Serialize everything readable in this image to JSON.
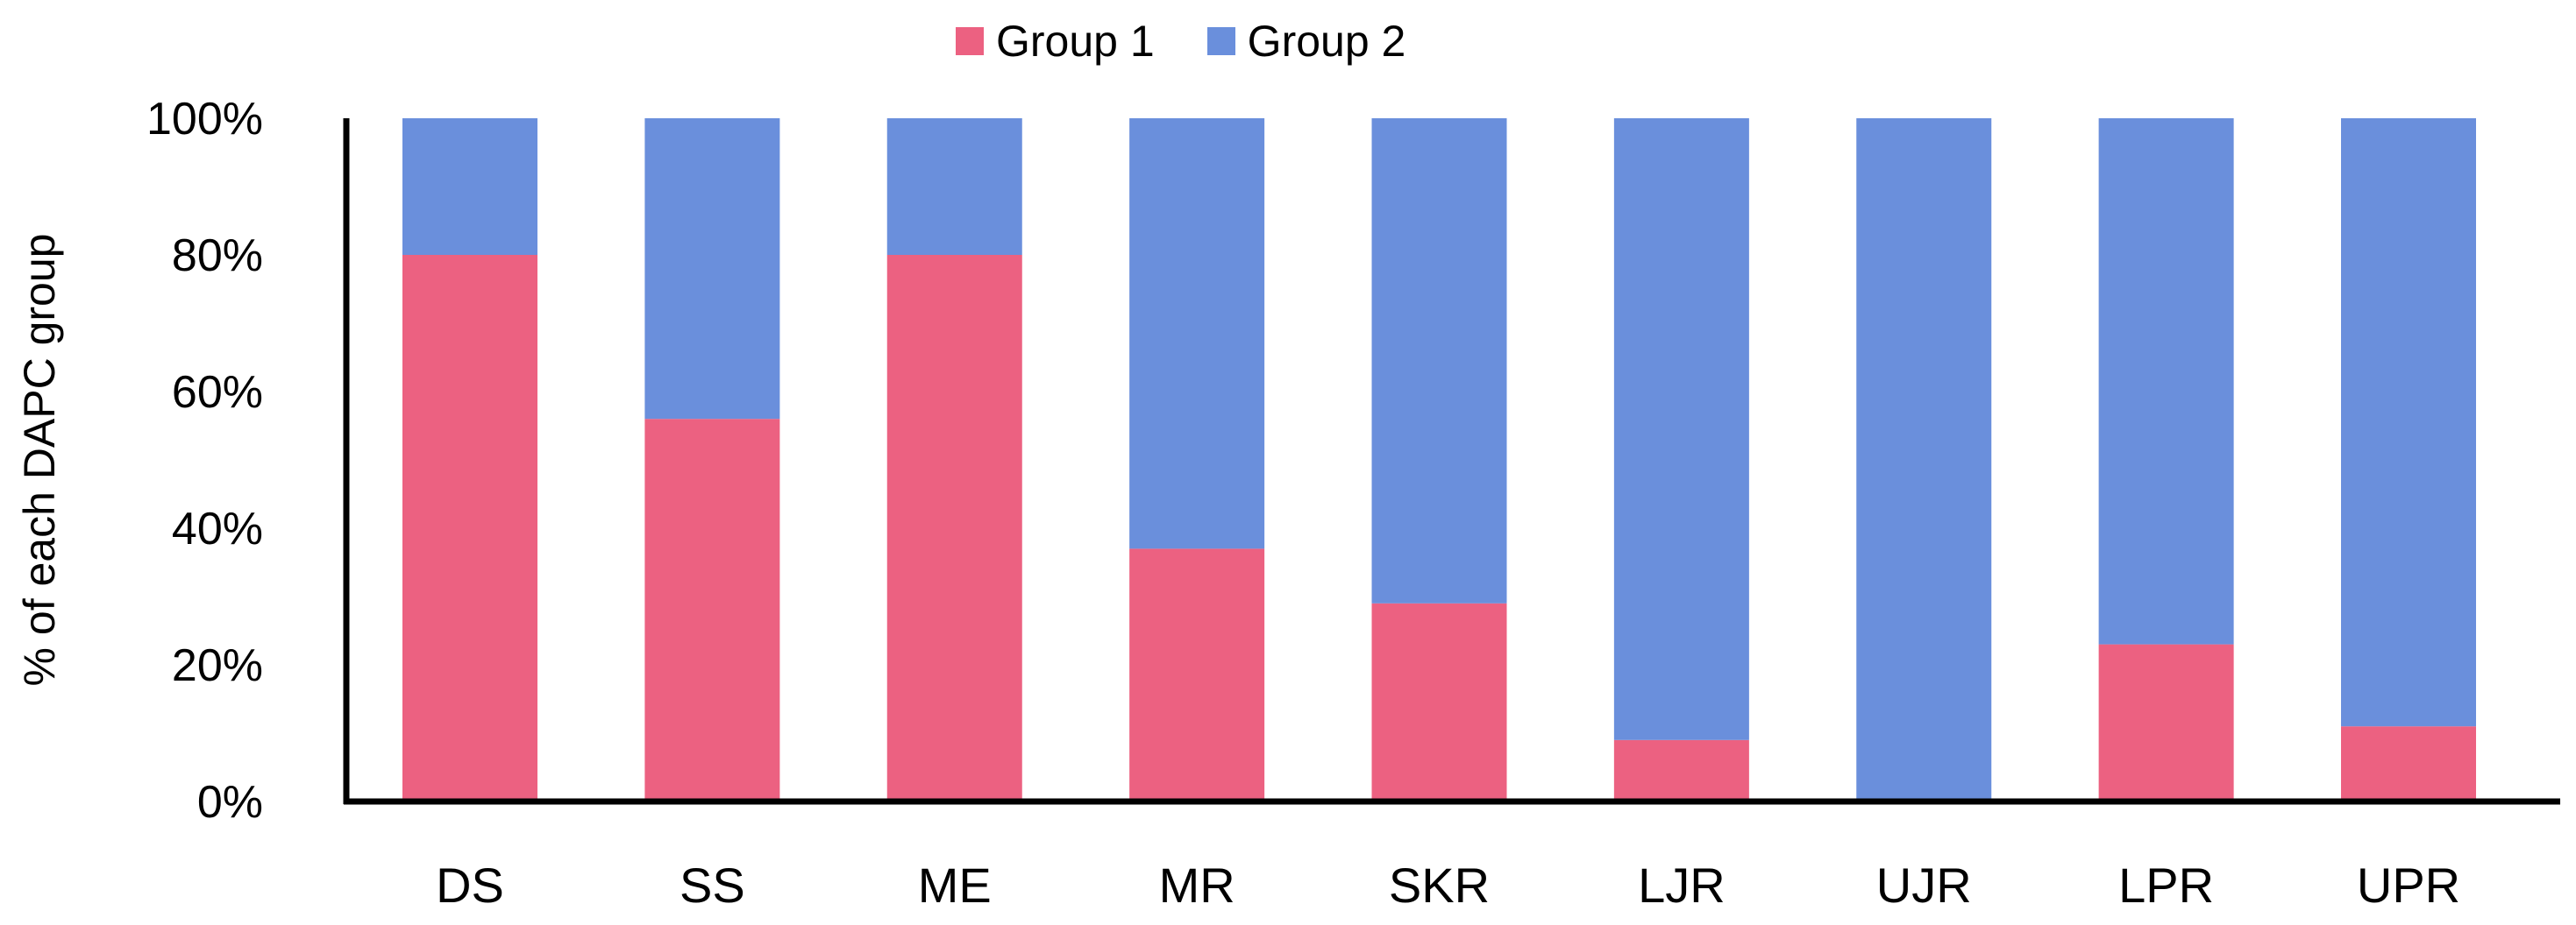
{
  "chart_data": {
    "type": "bar",
    "stacked": true,
    "categories": [
      "DS",
      "SS",
      "ME",
      "MR",
      "SKR",
      "LJR",
      "UJR",
      "LPR",
      "UPR"
    ],
    "series": [
      {
        "name": "Group 1",
        "color": "#ec6181",
        "values": [
          80,
          56,
          80,
          37,
          29,
          9,
          0,
          23,
          11
        ]
      },
      {
        "name": "Group 2",
        "color": "#6a8fdc",
        "values": [
          20,
          44,
          20,
          63,
          71,
          91,
          100,
          77,
          89
        ]
      }
    ],
    "ylabel": "% of each DAPC group",
    "xlabel": "",
    "ylim": [
      0,
      100
    ],
    "yticks": [
      "0%",
      "20%",
      "40%",
      "60%",
      "80%",
      "100%"
    ],
    "legend_position": "top-center",
    "grid": false
  }
}
